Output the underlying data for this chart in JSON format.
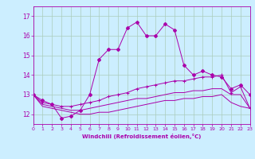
{
  "background_color": "#cceeff",
  "grid_color": "#aaccbb",
  "line_color": "#aa00aa",
  "xlabel": "Windchill (Refroidissement éolien,°C)",
  "xlim": [
    0,
    23
  ],
  "ylim": [
    11.5,
    17.5
  ],
  "yticks": [
    12,
    13,
    14,
    15,
    16,
    17
  ],
  "xticks": [
    0,
    1,
    2,
    3,
    4,
    5,
    6,
    7,
    8,
    9,
    10,
    11,
    12,
    13,
    14,
    15,
    16,
    17,
    18,
    19,
    20,
    21,
    22,
    23
  ],
  "curve1_x": [
    0,
    1,
    2,
    3,
    4,
    5,
    6,
    7,
    8,
    9,
    10,
    11,
    12,
    13,
    14,
    15,
    16,
    17,
    18,
    19,
    20,
    21,
    22,
    23
  ],
  "curve1_y": [
    13.0,
    12.7,
    12.5,
    11.8,
    11.9,
    12.2,
    13.0,
    14.8,
    15.3,
    15.3,
    16.4,
    16.7,
    16.0,
    16.0,
    16.6,
    16.3,
    14.5,
    14.0,
    14.2,
    14.0,
    13.9,
    13.3,
    13.5,
    13.0
  ],
  "curve2_x": [
    0,
    1,
    2,
    3,
    4,
    5,
    6,
    7,
    8,
    9,
    10,
    11,
    12,
    13,
    14,
    15,
    16,
    17,
    18,
    19,
    20,
    21,
    22,
    23
  ],
  "curve2_y": [
    13.0,
    12.6,
    12.5,
    12.4,
    12.4,
    12.5,
    12.6,
    12.7,
    12.9,
    13.0,
    13.1,
    13.3,
    13.4,
    13.5,
    13.6,
    13.7,
    13.7,
    13.8,
    13.9,
    13.9,
    14.0,
    13.1,
    13.4,
    12.3
  ],
  "curve3_x": [
    0,
    1,
    2,
    3,
    4,
    5,
    6,
    7,
    8,
    9,
    10,
    11,
    12,
    13,
    14,
    15,
    16,
    17,
    18,
    19,
    20,
    21,
    22,
    23
  ],
  "curve3_y": [
    13.0,
    12.5,
    12.4,
    12.3,
    12.2,
    12.2,
    12.3,
    12.4,
    12.5,
    12.6,
    12.7,
    12.8,
    12.8,
    12.9,
    13.0,
    13.1,
    13.1,
    13.2,
    13.2,
    13.3,
    13.3,
    13.0,
    13.0,
    12.3
  ],
  "curve4_x": [
    0,
    1,
    2,
    3,
    4,
    5,
    6,
    7,
    8,
    9,
    10,
    11,
    12,
    13,
    14,
    15,
    16,
    17,
    18,
    19,
    20,
    21,
    22,
    23
  ],
  "curve4_y": [
    13.0,
    12.4,
    12.3,
    12.2,
    12.1,
    12.0,
    12.0,
    12.1,
    12.1,
    12.2,
    12.3,
    12.4,
    12.5,
    12.6,
    12.7,
    12.7,
    12.8,
    12.8,
    12.9,
    12.9,
    13.0,
    12.6,
    12.4,
    12.3
  ]
}
